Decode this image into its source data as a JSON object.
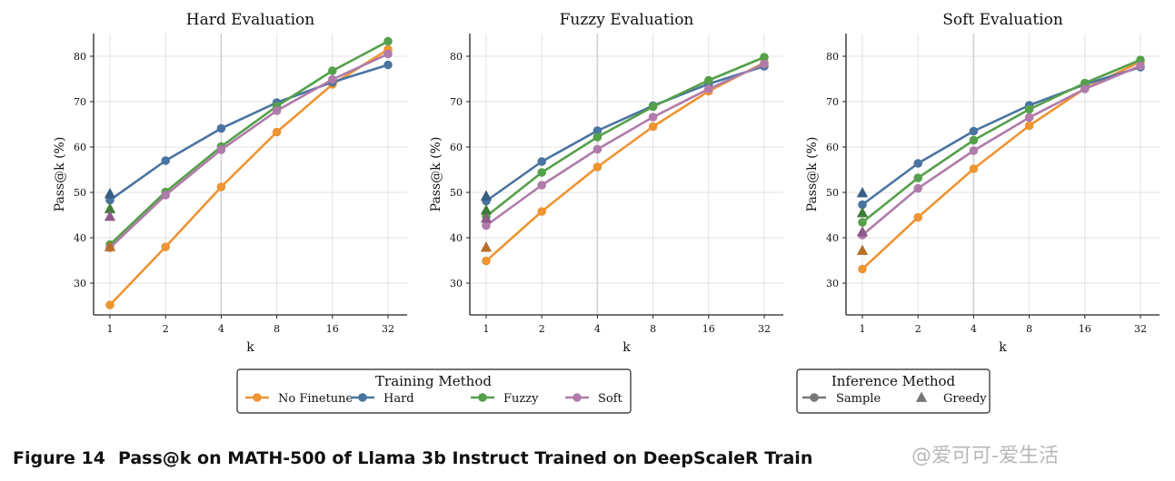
{
  "caption": {
    "number": "Figure 14",
    "text": "Pass@k on MATH-500 of Llama 3b Instruct Trained on DeepScaleR Train"
  },
  "watermark": "@爱可可-爱生活",
  "colors": {
    "No Finetune": "#EE9432",
    "Hard": "#4A74A0",
    "Fuzzy": "#55A04A",
    "Soft": "#B07BAA",
    "greedy": {
      "No Finetune": "#B86E26",
      "Hard": "#375E85",
      "Fuzzy": "#3F7C37",
      "Soft": "#8E5B89"
    },
    "grid": "#e3e3e3",
    "axis": "#222222"
  },
  "legends": {
    "training": {
      "title": "Training Method",
      "entries": [
        "No Finetune",
        "Hard",
        "Fuzzy",
        "Soft"
      ]
    },
    "inference": {
      "title": "Inference Method",
      "entries": [
        "Sample",
        "Greedy"
      ]
    }
  },
  "chart_data": [
    {
      "type": "line",
      "title": "Hard Evaluation",
      "xlabel": "k",
      "ylabel": "Pass@k (%)",
      "x_scale": "log2",
      "x": [
        1,
        2,
        4,
        8,
        16,
        32
      ],
      "yticks": [
        30,
        40,
        50,
        60,
        70,
        80
      ],
      "ylim": [
        23,
        85
      ],
      "grid": true,
      "series": [
        {
          "name": "No Finetune",
          "values": [
            25.2,
            38.0,
            51.2,
            63.3,
            73.8,
            81.5
          ]
        },
        {
          "name": "Hard",
          "values": [
            48.3,
            57.0,
            64.1,
            69.8,
            74.3,
            78.1
          ]
        },
        {
          "name": "Fuzzy",
          "values": [
            38.5,
            50.1,
            60.1,
            69.0,
            76.8,
            83.3
          ]
        },
        {
          "name": "Soft",
          "values": [
            37.8,
            49.4,
            59.4,
            68.0,
            74.9,
            80.5
          ]
        }
      ],
      "greedy": [
        {
          "name": "No Finetune",
          "value": 38.0
        },
        {
          "name": "Hard",
          "value": 49.7
        },
        {
          "name": "Fuzzy",
          "value": 46.4
        },
        {
          "name": "Soft",
          "value": 44.7
        }
      ]
    },
    {
      "type": "line",
      "title": "Fuzzy Evaluation",
      "xlabel": "k",
      "ylabel": "Pass@k (%)",
      "x_scale": "log2",
      "x": [
        1,
        2,
        4,
        8,
        16,
        32
      ],
      "yticks": [
        30,
        40,
        50,
        60,
        70,
        80
      ],
      "ylim": [
        23,
        85
      ],
      "grid": true,
      "series": [
        {
          "name": "No Finetune",
          "values": [
            34.9,
            45.8,
            55.6,
            64.5,
            72.3,
            78.6
          ]
        },
        {
          "name": "Hard",
          "values": [
            48.1,
            56.8,
            63.6,
            69.1,
            73.9,
            77.8
          ]
        },
        {
          "name": "Fuzzy",
          "values": [
            44.7,
            54.4,
            62.2,
            68.9,
            74.7,
            79.8
          ]
        },
        {
          "name": "Soft",
          "values": [
            42.7,
            51.6,
            59.5,
            66.6,
            72.8,
            78.3
          ]
        }
      ],
      "greedy": [
        {
          "name": "No Finetune",
          "value": 37.9
        },
        {
          "name": "Hard",
          "value": 49.2
        },
        {
          "name": "Fuzzy",
          "value": 46.1
        },
        {
          "name": "Soft",
          "value": 44.3
        }
      ]
    },
    {
      "type": "line",
      "title": "Soft Evaluation",
      "xlabel": "k",
      "ylabel": "Pass@k (%)",
      "x_scale": "log2",
      "x": [
        1,
        2,
        4,
        8,
        16,
        32
      ],
      "yticks": [
        30,
        40,
        50,
        60,
        70,
        80
      ],
      "ylim": [
        23,
        85
      ],
      "grid": true,
      "series": [
        {
          "name": "No Finetune",
          "values": [
            33.1,
            44.5,
            55.2,
            64.7,
            72.9,
            78.8
          ]
        },
        {
          "name": "Hard",
          "values": [
            47.3,
            56.4,
            63.5,
            69.2,
            73.8,
            77.6
          ]
        },
        {
          "name": "Fuzzy",
          "values": [
            43.4,
            53.2,
            61.5,
            68.3,
            74.1,
            79.2
          ]
        },
        {
          "name": "Soft",
          "values": [
            40.6,
            50.9,
            59.2,
            66.5,
            72.8,
            77.9
          ]
        }
      ],
      "greedy": [
        {
          "name": "No Finetune",
          "value": 37.2
        },
        {
          "name": "Hard",
          "value": 49.9
        },
        {
          "name": "Fuzzy",
          "value": 45.5
        },
        {
          "name": "Soft",
          "value": 41.3
        }
      ]
    }
  ]
}
